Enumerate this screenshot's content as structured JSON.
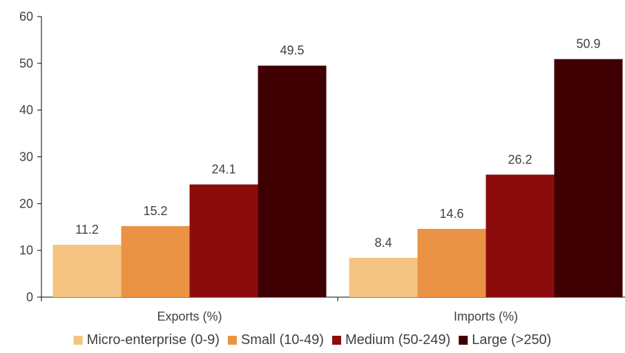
{
  "chart_data": {
    "type": "bar",
    "title": "",
    "xlabel": "",
    "ylabel": "",
    "categories": [
      "Exports (%)",
      "Imports (%)"
    ],
    "ylim": [
      0,
      60
    ],
    "yticks": [
      "0",
      "10",
      "20",
      "30",
      "40",
      "50",
      "60"
    ],
    "grid": false,
    "legend_position": "bottom",
    "series": [
      {
        "name": "Micro-enterprise (0-9)",
        "color": "#F5C482",
        "values": [
          11.2,
          8.4
        ],
        "labels": [
          "11.2",
          "8.4"
        ]
      },
      {
        "name": "Small (10-49)",
        "color": "#EB9345",
        "values": [
          15.2,
          14.6
        ],
        "labels": [
          "15.2",
          "14.6"
        ]
      },
      {
        "name": "Medium (50-249)",
        "color": "#8C0C0C",
        "values": [
          24.1,
          26.2
        ],
        "labels": [
          "24.1",
          "26.2"
        ]
      },
      {
        "name": "Large (>250)",
        "color": "#3F0004",
        "values": [
          49.5,
          50.9
        ],
        "labels": [
          "49.5",
          "50.9"
        ]
      }
    ]
  }
}
